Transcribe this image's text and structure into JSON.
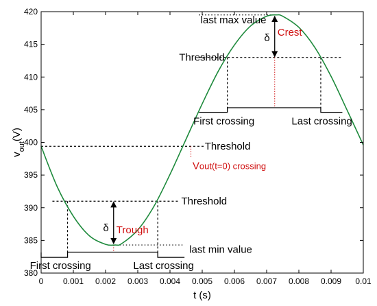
{
  "chart_data": {
    "type": "line",
    "xlabel": "t (s)",
    "ylabel_main": "v",
    "ylabel_sub": "out",
    "ylabel_unit": "(V)",
    "xlim": [
      0,
      0.01
    ],
    "ylim": [
      380,
      420
    ],
    "x_ticks": [
      0,
      0.001,
      0.002,
      0.003,
      0.004,
      0.005,
      0.006,
      0.007,
      0.008,
      0.009,
      0.01
    ],
    "x_tick_labels": [
      "0",
      "0.001",
      "0.002",
      "0.003",
      "0.004",
      "0.005",
      "0.006",
      "0.007",
      "0.008",
      "0.009",
      "0.01"
    ],
    "y_ticks": [
      380,
      385,
      390,
      395,
      400,
      405,
      410,
      415,
      420
    ],
    "y_tick_labels": [
      "380",
      "385",
      "390",
      "395",
      "400",
      "405",
      "410",
      "415",
      "420"
    ],
    "grid": false,
    "legend": "none",
    "series": [
      {
        "color": "#1e8a3c",
        "x": [
          0,
          0.0005,
          0.001,
          0.0015,
          0.002,
          0.0023,
          0.0025,
          0.003,
          0.0035,
          0.004,
          0.0045,
          0.005,
          0.0055,
          0.006,
          0.0065,
          0.007,
          0.0073,
          0.0075,
          0.008,
          0.0085,
          0.009,
          0.0095,
          0.01
        ],
        "y": [
          399.4,
          393.2,
          388.7,
          385.7,
          384.4,
          384.3,
          384.5,
          386.6,
          390.2,
          395.1,
          400.5,
          405.9,
          410.9,
          414.9,
          417.8,
          419.3,
          419.5,
          419.3,
          417.6,
          414.5,
          410.1,
          404.9,
          399.6
        ]
      }
    ],
    "annotations": {
      "last_max_label": "last max value",
      "last_max_value": 419.5,
      "last_min_label": "last min value",
      "last_min_value": 384.3,
      "crest_label": "Crest",
      "crest_t": 0.00725,
      "trough_label": "Trough",
      "trough_t": 0.00225,
      "delta_symbol": "δ",
      "threshold_label": "Threshold",
      "upper_threshold": 413.0,
      "middle_threshold": 399.4,
      "lower_threshold": 391.0,
      "zero_crossing_label_main": "V",
      "zero_crossing_label_rest": "out(t=0) crossing",
      "zero_crossing_t": 0.00465,
      "first_crossing_label": "First crossing",
      "last_crossing_label": "Last crossing",
      "lower_first_crossing_t": 0.00082,
      "lower_last_crossing_t": 0.00362,
      "upper_first_crossing_t": 0.00578,
      "upper_last_crossing_t": 0.00868,
      "lower_pulse_low": 382.4,
      "lower_pulse_high": 383.2,
      "upper_pulse_low": 404.6,
      "upper_pulse_high": 405.3,
      "annotation_color": "#d01010"
    }
  }
}
